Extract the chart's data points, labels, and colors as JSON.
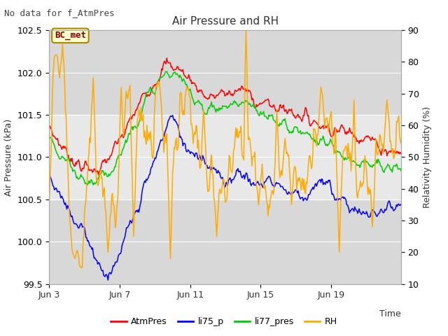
{
  "title": "Air Pressure and RH",
  "top_left_text": "No data for f_AtmPres",
  "box_label": "BC_met",
  "xlabel": "Time",
  "ylabel_left": "Air Pressure (kPa)",
  "ylabel_right": "Relativity Humidity (%)",
  "ylim_left": [
    99.5,
    102.5
  ],
  "ylim_right": [
    10,
    90
  ],
  "yticks_left": [
    99.5,
    100.0,
    100.5,
    101.0,
    101.5,
    102.0,
    102.5
  ],
  "yticks_right": [
    10,
    20,
    30,
    40,
    50,
    60,
    70,
    80,
    90
  ],
  "xtick_labels": [
    "Jun 3",
    "Jun 7",
    "Jun 11",
    "Jun 15",
    "Jun 19"
  ],
  "xtick_positions": [
    0,
    96,
    192,
    288,
    384
  ],
  "total_points": 480,
  "colors": {
    "AtmPres": "#ff0000",
    "li75_p": "#0000ff",
    "li77_pres": "#00cc00",
    "RH": "#ffaa00"
  },
  "bg_outer": "#d8d8d8",
  "bg_inner": "#e8e8e8",
  "grid_color": "#ffffff"
}
